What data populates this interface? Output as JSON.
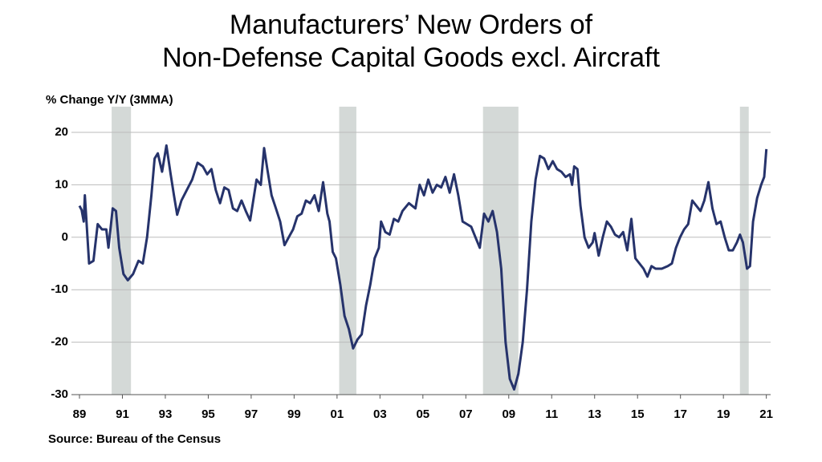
{
  "chart_data": {
    "type": "line",
    "title": [
      "Manufacturers’ New Orders of",
      "Non-Defense Capital Goods excl. Aircraft"
    ],
    "y_label": "% Change Y/Y (3MMA)",
    "source": "Source: Bureau of the Census",
    "color": "#26336b",
    "recession_color": "#d4d9d7",
    "recessions": [
      [
        1990.5,
        1991.4
      ],
      [
        2001.1,
        2001.9
      ],
      [
        2007.8,
        2009.45
      ],
      [
        2019.77,
        2020.18
      ]
    ],
    "x": [
      1989.0,
      1989.1,
      1989.2,
      1989.25,
      1989.45,
      1989.65,
      1989.85,
      1990.05,
      1990.25,
      1990.35,
      1990.55,
      1990.7,
      1990.85,
      1991.05,
      1991.25,
      1991.5,
      1991.75,
      1991.95,
      1992.15,
      1992.35,
      1992.5,
      1992.65,
      1992.85,
      1993.05,
      1993.25,
      1993.4,
      1993.55,
      1993.75,
      1994.0,
      1994.25,
      1994.5,
      1994.75,
      1994.95,
      1995.15,
      1995.35,
      1995.55,
      1995.75,
      1995.95,
      1996.15,
      1996.35,
      1996.55,
      1996.75,
      1996.95,
      1997.25,
      1997.45,
      1997.6,
      1997.75,
      1997.95,
      1998.15,
      1998.35,
      1998.55,
      1998.75,
      1998.95,
      1999.15,
      1999.35,
      1999.55,
      1999.75,
      1999.95,
      2000.15,
      2000.35,
      2000.55,
      2000.65,
      2000.8,
      2000.95,
      2001.15,
      2001.35,
      2001.55,
      2001.75,
      2001.95,
      2002.15,
      2002.35,
      2002.55,
      2002.75,
      2002.95,
      2003.05,
      2003.25,
      2003.45,
      2003.65,
      2003.85,
      2004.05,
      2004.35,
      2004.65,
      2004.85,
      2005.05,
      2005.25,
      2005.45,
      2005.65,
      2005.85,
      2006.05,
      2006.25,
      2006.45,
      2006.65,
      2006.85,
      2007.05,
      2007.25,
      2007.45,
      2007.65,
      2007.85,
      2008.05,
      2008.25,
      2008.45,
      2008.65,
      2008.85,
      2009.05,
      2009.25,
      2009.45,
      2009.65,
      2009.85,
      2010.05,
      2010.25,
      2010.45,
      2010.65,
      2010.85,
      2011.05,
      2011.25,
      2011.45,
      2011.65,
      2011.85,
      2011.95,
      2012.05,
      2012.2,
      2012.34,
      2012.53,
      2012.72,
      2012.91,
      2013.0,
      2013.19,
      2013.38,
      2013.57,
      2013.76,
      2013.95,
      2014.14,
      2014.33,
      2014.52,
      2014.71,
      2014.9,
      2015.09,
      2015.28,
      2015.46,
      2015.65,
      2015.84,
      2016.13,
      2016.41,
      2016.6,
      2016.79,
      2016.98,
      2017.17,
      2017.36,
      2017.55,
      2017.74,
      2017.93,
      2018.11,
      2018.3,
      2018.49,
      2018.68,
      2018.87,
      2019.06,
      2019.25,
      2019.44,
      2019.63,
      2019.77,
      2019.91,
      2020.1,
      2020.24,
      2020.38,
      2020.57,
      2020.76,
      2020.9,
      2021.0
    ],
    "values": [
      6,
      5.2,
      3,
      8,
      -5,
      -4.5,
      2.5,
      1.5,
      1.5,
      -2,
      5.5,
      5,
      -2,
      -7,
      -8.2,
      -7,
      -4.5,
      -5,
      0,
      8,
      15,
      16,
      12.5,
      17.5,
      12,
      8,
      4.3,
      7,
      9,
      11,
      14.2,
      13.5,
      12,
      13,
      9,
      6.5,
      9.5,
      9,
      5.5,
      5,
      7,
      5,
      3.2,
      11,
      10,
      17,
      13,
      8,
      5.5,
      3,
      -1.5,
      0,
      1.5,
      4,
      4.5,
      7,
      6.5,
      8,
      5,
      10.5,
      4.5,
      3,
      -2.8,
      -4,
      -9,
      -15,
      -17.5,
      -21.2,
      -19.5,
      -18.5,
      -13,
      -9,
      -4,
      -2,
      3,
      1,
      0.5,
      3.5,
      3,
      5,
      6.5,
      5.5,
      10,
      8,
      11,
      8.5,
      10,
      9.5,
      11.5,
      8.5,
      12,
      8,
      3,
      2.5,
      2,
      0,
      -2,
      4.5,
      3,
      5,
      1,
      -6,
      -20,
      -27,
      -29,
      -26,
      -20,
      -10,
      3,
      11,
      15.5,
      15,
      13,
      14.5,
      13,
      12.5,
      11.5,
      12,
      10,
      13.5,
      13,
      6,
      0,
      -2,
      -1,
      0.8,
      -3.5,
      0,
      3,
      2,
      0.5,
      0,
      1,
      -2.5,
      3.5,
      -4,
      -5,
      -6,
      -7.5,
      -5.5,
      -6,
      -6,
      -5.5,
      -5,
      -2,
      0,
      1.5,
      2.5,
      7,
      6,
      5,
      7,
      10.5,
      5.5,
      2.5,
      3,
      0,
      -2.5,
      -2.5,
      -1,
      0.5,
      -1,
      -6,
      -5.5,
      3,
      7.5,
      10,
      11.5,
      16.8
    ],
    "xlim": [
      1989,
      2021.2
    ],
    "xticks": [
      {
        "value": 1989,
        "label": "89"
      },
      {
        "value": 1991,
        "label": "91"
      },
      {
        "value": 1993,
        "label": "93"
      },
      {
        "value": 1995,
        "label": "95"
      },
      {
        "value": 1997,
        "label": "97"
      },
      {
        "value": 1999,
        "label": "99"
      },
      {
        "value": 2001,
        "label": "01"
      },
      {
        "value": 2003,
        "label": "03"
      },
      {
        "value": 2005,
        "label": "05"
      },
      {
        "value": 2007,
        "label": "07"
      },
      {
        "value": 2009,
        "label": "09"
      },
      {
        "value": 2011,
        "label": "11"
      },
      {
        "value": 2013,
        "label": "13"
      },
      {
        "value": 2015,
        "label": "15"
      },
      {
        "value": 2017,
        "label": "17"
      },
      {
        "value": 2019,
        "label": "19"
      },
      {
        "value": 2021,
        "label": "21"
      }
    ],
    "ylim": [
      -30,
      20
    ],
    "yticks": [
      20,
      10,
      0,
      -10,
      -20,
      -30
    ],
    "grid": true
  }
}
